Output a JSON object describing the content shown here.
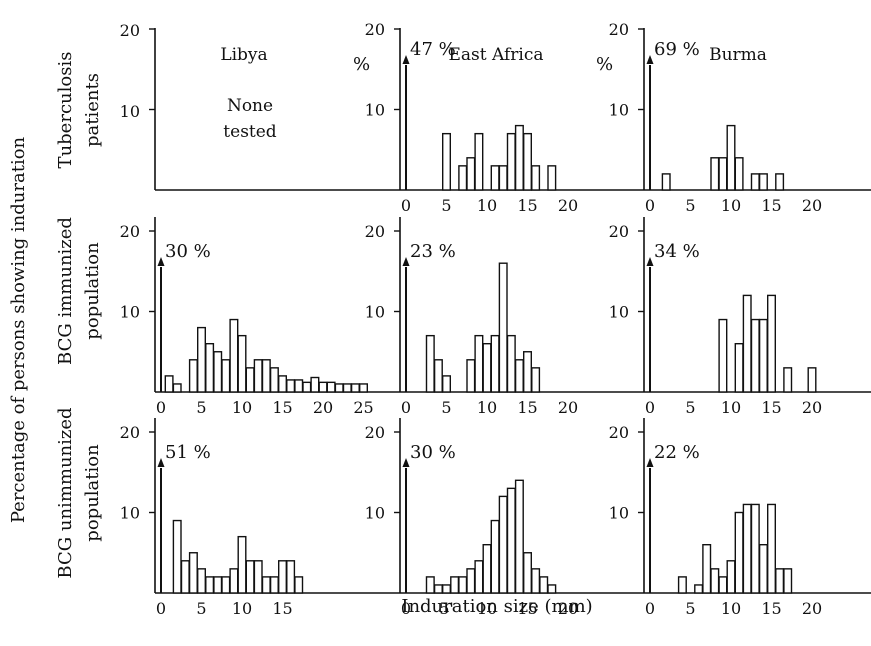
{
  "figure": {
    "y_axis_title": "Percentage of persons showing induration",
    "x_axis_title": "Induration size (mm)",
    "col_titles": [
      "Libya",
      "East Africa",
      "Burma"
    ],
    "row_titles": [
      [
        "Tuberculosis",
        "patients"
      ],
      [
        "BCG immunized",
        "population"
      ],
      [
        "BCG unimmunized",
        "population"
      ]
    ],
    "none_tested": [
      "None",
      "tested"
    ],
    "percent_unit": "%",
    "colors": {
      "ink": "#111111",
      "bar_fill": "#ffffff"
    }
  },
  "chart_data": [
    {
      "type": "bar",
      "row": 0,
      "col": 1,
      "title": "East Africa",
      "row_label": "Tuberculosis patients",
      "ylim": [
        0,
        20
      ],
      "xlim": [
        0,
        25
      ],
      "y_ticks": [
        "10",
        "20"
      ],
      "x_ticks": [
        "0",
        "5",
        "10",
        "15",
        "20"
      ],
      "zero_bar_label": "47 %",
      "zero_value": 47,
      "x": [
        5,
        7,
        8,
        9,
        11,
        12,
        13,
        14,
        15,
        16,
        18
      ],
      "values": [
        7,
        3,
        4,
        7,
        3,
        3,
        7,
        8,
        7,
        3,
        3
      ]
    },
    {
      "type": "bar",
      "row": 0,
      "col": 2,
      "title": "Burma",
      "row_label": "Tuberculosis patients",
      "ylim": [
        0,
        20
      ],
      "xlim": [
        0,
        25
      ],
      "y_ticks": [
        "10",
        "20"
      ],
      "x_ticks": [
        "0",
        "5",
        "10",
        "15",
        "20"
      ],
      "zero_bar_label": "69 %",
      "zero_value": 69,
      "x": [
        2,
        8,
        9,
        10,
        11,
        13,
        14,
        16
      ],
      "values": [
        2,
        4,
        4,
        8,
        4,
        2,
        2,
        2
      ]
    },
    {
      "type": "bar",
      "row": 1,
      "col": 0,
      "title": "Libya",
      "row_label": "BCG immunized population",
      "ylim": [
        0,
        20
      ],
      "xlim": [
        0,
        25
      ],
      "y_ticks": [
        "10",
        "20"
      ],
      "x_ticks": [
        "0",
        "5",
        "10",
        "15",
        "20",
        "25"
      ],
      "zero_bar_label": "30 %",
      "zero_value": 30,
      "x": [
        1,
        2,
        4,
        5,
        6,
        7,
        8,
        9,
        10,
        11,
        12,
        13,
        14,
        15,
        16,
        17,
        18,
        19,
        20,
        21,
        22,
        23,
        24,
        25
      ],
      "values": [
        2,
        1,
        4,
        8,
        6,
        5,
        4,
        9,
        7,
        3,
        4,
        4,
        3,
        2,
        1.5,
        1.5,
        1.2,
        1.8,
        1.2,
        1.2,
        1,
        1,
        1,
        1
      ]
    },
    {
      "type": "bar",
      "row": 1,
      "col": 1,
      "title": "East Africa",
      "row_label": "BCG immunized population",
      "ylim": [
        0,
        20
      ],
      "xlim": [
        0,
        25
      ],
      "y_ticks": [
        "10",
        "20"
      ],
      "x_ticks": [
        "0",
        "5",
        "10",
        "15",
        "20"
      ],
      "zero_bar_label": "23 %",
      "zero_value": 23,
      "x": [
        3,
        4,
        5,
        8,
        9,
        10,
        11,
        12,
        13,
        14,
        15,
        16
      ],
      "values": [
        7,
        4,
        2,
        4,
        7,
        6,
        7,
        16,
        7,
        4,
        5,
        3
      ]
    },
    {
      "type": "bar",
      "row": 1,
      "col": 2,
      "title": "Burma",
      "row_label": "BCG immunized population",
      "ylim": [
        0,
        20
      ],
      "xlim": [
        0,
        25
      ],
      "y_ticks": [
        "10",
        "20"
      ],
      "x_ticks": [
        "0",
        "5",
        "10",
        "15",
        "20"
      ],
      "zero_bar_label": "34 %",
      "zero_value": 34,
      "x": [
        9,
        11,
        12,
        13,
        14,
        15,
        17,
        20
      ],
      "values": [
        9,
        6,
        12,
        9,
        9,
        12,
        3,
        3
      ]
    },
    {
      "type": "bar",
      "row": 2,
      "col": 0,
      "title": "Libya",
      "row_label": "BCG unimmunized population",
      "ylim": [
        0,
        20
      ],
      "xlim": [
        0,
        25
      ],
      "y_ticks": [
        "10",
        "20"
      ],
      "x_ticks": [
        "0",
        "5",
        "10",
        "15"
      ],
      "zero_bar_label": "51 %",
      "zero_value": 51,
      "x": [
        2,
        3,
        4,
        5,
        6,
        7,
        8,
        9,
        10,
        11,
        12,
        13,
        14,
        15,
        16,
        17
      ],
      "values": [
        9,
        4,
        5,
        3,
        2,
        2,
        2,
        3,
        7,
        4,
        4,
        2,
        2,
        4,
        4,
        2
      ]
    },
    {
      "type": "bar",
      "row": 2,
      "col": 1,
      "title": "East Africa",
      "row_label": "BCG unimmunized population",
      "ylim": [
        0,
        20
      ],
      "xlim": [
        0,
        25
      ],
      "y_ticks": [
        "10",
        "20"
      ],
      "x_ticks": [
        "0",
        "5'",
        "10",
        "15",
        "20"
      ],
      "zero_bar_label": "30 %",
      "zero_value": 30,
      "x": [
        3,
        4,
        5,
        6,
        7,
        8,
        9,
        10,
        11,
        12,
        13,
        14,
        15,
        16,
        17,
        18
      ],
      "values": [
        2,
        1,
        1,
        2,
        2,
        3,
        4,
        6,
        9,
        12,
        13,
        14,
        5,
        3,
        2,
        1
      ]
    },
    {
      "type": "bar",
      "row": 2,
      "col": 2,
      "title": "Burma",
      "row_label": "BCG unimmunized population",
      "ylim": [
        0,
        20
      ],
      "xlim": [
        0,
        25
      ],
      "y_ticks": [
        "10",
        "20"
      ],
      "x_ticks": [
        "0",
        "5",
        "10",
        "15",
        "20"
      ],
      "zero_bar_label": "22 %",
      "zero_value": 22,
      "x": [
        4,
        6,
        7,
        8,
        9,
        10,
        11,
        12,
        13,
        14,
        15,
        16,
        17
      ],
      "values": [
        2,
        1,
        6,
        3,
        2,
        4,
        10,
        11,
        11,
        6,
        11,
        3,
        3
      ]
    }
  ]
}
